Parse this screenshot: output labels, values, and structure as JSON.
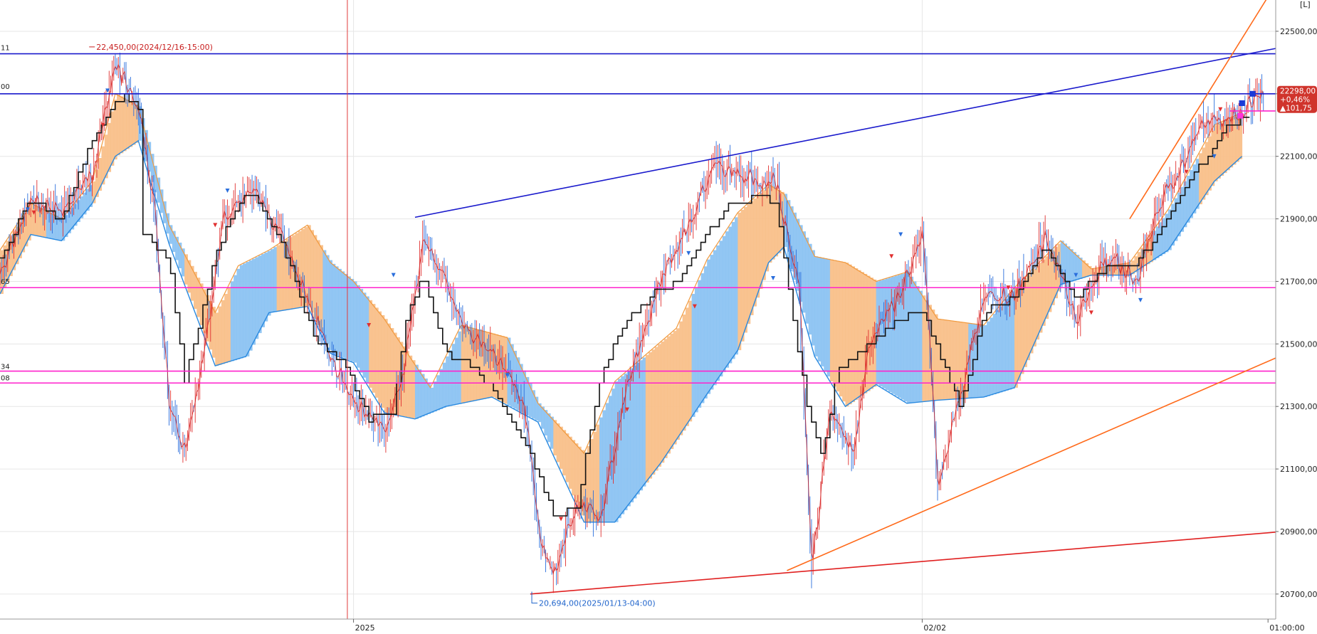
{
  "chart_data": {
    "type": "line",
    "title": "",
    "xlabel": "",
    "ylabel": "",
    "ylim": [
      20620,
      22600
    ],
    "grid": true,
    "y_ticks": [
      "22500,00",
      "22300,00",
      "22100,00",
      "21900,00",
      "21700,00",
      "21500,00",
      "21300,00",
      "21100,00",
      "20900,00",
      "20700,00"
    ],
    "y_tick_values": [
      22500,
      22300,
      22100,
      21900,
      21700,
      21500,
      21300,
      21100,
      20900,
      20700
    ],
    "x_ticks": [
      {
        "label": "2025",
        "bar": 230
      },
      {
        "label": "02/02",
        "bar": 600
      },
      {
        "label": "01:00:00",
        "bar": 825
      }
    ],
    "bars": 830,
    "price_path": [
      [
        0,
        21720
      ],
      [
        20,
        21960
      ],
      [
        40,
        21920
      ],
      [
        60,
        22050
      ],
      [
        75,
        22400
      ],
      [
        90,
        22250
      ],
      [
        100,
        21950
      ],
      [
        110,
        21300
      ],
      [
        120,
        21150
      ],
      [
        135,
        21550
      ],
      [
        145,
        21900
      ],
      [
        165,
        22000
      ],
      [
        185,
        21820
      ],
      [
        200,
        21650
      ],
      [
        215,
        21450
      ],
      [
        230,
        21320
      ],
      [
        250,
        21230
      ],
      [
        262,
        21400
      ],
      [
        275,
        21840
      ],
      [
        290,
        21700
      ],
      [
        300,
        21550
      ],
      [
        320,
        21480
      ],
      [
        340,
        21320
      ],
      [
        352,
        20860
      ],
      [
        360,
        20760
      ],
      [
        375,
        21000
      ],
      [
        390,
        20930
      ],
      [
        405,
        21300
      ],
      [
        425,
        21650
      ],
      [
        445,
        21850
      ],
      [
        465,
        22080
      ],
      [
        485,
        22030
      ],
      [
        505,
        22020
      ],
      [
        520,
        21660
      ],
      [
        528,
        20780
      ],
      [
        540,
        21300
      ],
      [
        555,
        21150
      ],
      [
        565,
        21500
      ],
      [
        585,
        21650
      ],
      [
        600,
        21850
      ],
      [
        610,
        21050
      ],
      [
        620,
        21250
      ],
      [
        640,
        21650
      ],
      [
        660,
        21650
      ],
      [
        680,
        21850
      ],
      [
        700,
        21580
      ],
      [
        720,
        21780
      ],
      [
        740,
        21700
      ],
      [
        750,
        21900
      ],
      [
        765,
        22050
      ],
      [
        785,
        22220
      ],
      [
        795,
        22200
      ],
      [
        810,
        22260
      ],
      [
        822,
        22298
      ]
    ],
    "cloud_upper": [
      [
        0,
        21800
      ],
      [
        20,
        21950
      ],
      [
        40,
        21900
      ],
      [
        60,
        22020
      ],
      [
        75,
        22300
      ],
      [
        90,
        22260
      ],
      [
        110,
        21880
      ],
      [
        140,
        21600
      ],
      [
        155,
        21750
      ],
      [
        175,
        21800
      ],
      [
        200,
        21880
      ],
      [
        215,
        21760
      ],
      [
        230,
        21700
      ],
      [
        250,
        21580
      ],
      [
        280,
        21360
      ],
      [
        300,
        21560
      ],
      [
        330,
        21520
      ],
      [
        350,
        21310
      ],
      [
        380,
        21150
      ],
      [
        400,
        21380
      ],
      [
        440,
        21550
      ],
      [
        460,
        21770
      ],
      [
        480,
        21920
      ],
      [
        500,
        22010
      ],
      [
        510,
        21980
      ],
      [
        530,
        21780
      ],
      [
        550,
        21760
      ],
      [
        570,
        21700
      ],
      [
        590,
        21730
      ],
      [
        610,
        21580
      ],
      [
        640,
        21560
      ],
      [
        660,
        21680
      ],
      [
        690,
        21830
      ],
      [
        710,
        21740
      ],
      [
        735,
        21760
      ],
      [
        760,
        21930
      ],
      [
        790,
        22200
      ],
      [
        808,
        22240
      ]
    ],
    "cloud_lower": [
      [
        0,
        21660
      ],
      [
        20,
        21850
      ],
      [
        40,
        21830
      ],
      [
        60,
        21950
      ],
      [
        75,
        22100
      ],
      [
        90,
        22150
      ],
      [
        110,
        21820
      ],
      [
        140,
        21430
      ],
      [
        160,
        21460
      ],
      [
        175,
        21600
      ],
      [
        200,
        21620
      ],
      [
        215,
        21470
      ],
      [
        230,
        21440
      ],
      [
        250,
        21280
      ],
      [
        270,
        21260
      ],
      [
        290,
        21300
      ],
      [
        320,
        21330
      ],
      [
        350,
        21250
      ],
      [
        380,
        20930
      ],
      [
        400,
        20930
      ],
      [
        430,
        21120
      ],
      [
        460,
        21340
      ],
      [
        480,
        21480
      ],
      [
        500,
        21760
      ],
      [
        510,
        21810
      ],
      [
        530,
        21460
      ],
      [
        550,
        21300
      ],
      [
        570,
        21370
      ],
      [
        590,
        21310
      ],
      [
        610,
        21320
      ],
      [
        640,
        21330
      ],
      [
        660,
        21360
      ],
      [
        690,
        21690
      ],
      [
        710,
        21720
      ],
      [
        735,
        21720
      ],
      [
        760,
        21800
      ],
      [
        790,
        22020
      ],
      [
        808,
        22100
      ]
    ],
    "kijun": [
      [
        0,
        21780
      ],
      [
        20,
        21960
      ],
      [
        40,
        21900
      ],
      [
        60,
        22150
      ],
      [
        80,
        22300
      ],
      [
        90,
        22250
      ],
      [
        92,
        21860
      ],
      [
        110,
        21760
      ],
      [
        120,
        21380
      ],
      [
        140,
        21780
      ],
      [
        155,
        21960
      ],
      [
        165,
        21980
      ],
      [
        185,
        21800
      ],
      [
        195,
        21650
      ],
      [
        205,
        21520
      ],
      [
        225,
        21430
      ],
      [
        240,
        21260
      ],
      [
        255,
        21280
      ],
      [
        265,
        21600
      ],
      [
        275,
        21720
      ],
      [
        290,
        21470
      ],
      [
        310,
        21420
      ],
      [
        330,
        21280
      ],
      [
        345,
        21140
      ],
      [
        360,
        20950
      ],
      [
        375,
        20980
      ],
      [
        390,
        21380
      ],
      [
        405,
        21560
      ],
      [
        425,
        21660
      ],
      [
        440,
        21700
      ],
      [
        455,
        21820
      ],
      [
        475,
        21950
      ],
      [
        495,
        21970
      ],
      [
        505,
        21950
      ],
      [
        515,
        21600
      ],
      [
        525,
        21300
      ],
      [
        535,
        21140
      ],
      [
        545,
        21420
      ],
      [
        565,
        21500
      ],
      [
        585,
        21580
      ],
      [
        600,
        21600
      ],
      [
        615,
        21420
      ],
      [
        625,
        21300
      ],
      [
        640,
        21600
      ],
      [
        660,
        21650
      ],
      [
        680,
        21820
      ],
      [
        700,
        21650
      ],
      [
        720,
        21750
      ],
      [
        735,
        21740
      ],
      [
        750,
        21830
      ],
      [
        765,
        21950
      ],
      [
        785,
        22100
      ],
      [
        795,
        22180
      ],
      [
        810,
        22230
      ]
    ],
    "lines": [
      {
        "name": "",
        "color": "#1a1acc",
        "kind": "hline",
        "y": 22428
      },
      {
        "name": "",
        "color": "#1a1acc",
        "kind": "hline",
        "y": 22300
      },
      {
        "name": "",
        "color": "#ff22cc",
        "kind": "hline",
        "y": 21680
      },
      {
        "name": "",
        "color": "#ff22cc",
        "kind": "hline",
        "y": 21413
      },
      {
        "name": "",
        "color": "#ff22cc",
        "kind": "hline",
        "y": 21375
      },
      {
        "name": "",
        "color": "#ff22cc",
        "kind": "segment",
        "x1": 800,
        "y1": 22245,
        "x2": 830,
        "y2": 22245
      },
      {
        "name": "",
        "color": "#1a1acc",
        "kind": "segment",
        "x1": 270,
        "y1": 21905,
        "x2": 830,
        "y2": 22445
      },
      {
        "name": "",
        "color": "#e02020",
        "kind": "segment",
        "x1": 345,
        "y1": 20700,
        "x2": 830,
        "y2": 20898
      },
      {
        "name": "",
        "color": "#ff6a1a",
        "kind": "segment",
        "x1": 512,
        "y1": 20775,
        "x2": 830,
        "y2": 21455
      },
      {
        "name": "",
        "color": "#ff6a1a",
        "kind": "segment",
        "x1": 735,
        "y1": 21900,
        "x2": 830,
        "y2": 22650
      }
    ],
    "vline_bar": 226,
    "grid_v_bars": [
      230,
      600
    ],
    "annotations": [
      {
        "text": "22,450,00(2024/12/16-15:00)",
        "x": 58,
        "y": 22450,
        "kind": "high"
      },
      {
        "text": "20,694,00(2025/01/13-04:00)",
        "x": 346,
        "y": 20694,
        "kind": "low"
      }
    ],
    "price_box": {
      "lines": [
        "22298,00",
        "+0,46%",
        "▲101,75"
      ],
      "y": 22298
    },
    "left_edge_labels": [
      {
        "text": "11",
        "y": 22440
      },
      {
        "text": "00",
        "y": 22315
      },
      {
        "text": "65",
        "y": 21692
      },
      {
        "text": "34",
        "y": 21420
      },
      {
        "text": "08",
        "y": 21383
      }
    ],
    "top_right_label": "[L]"
  }
}
